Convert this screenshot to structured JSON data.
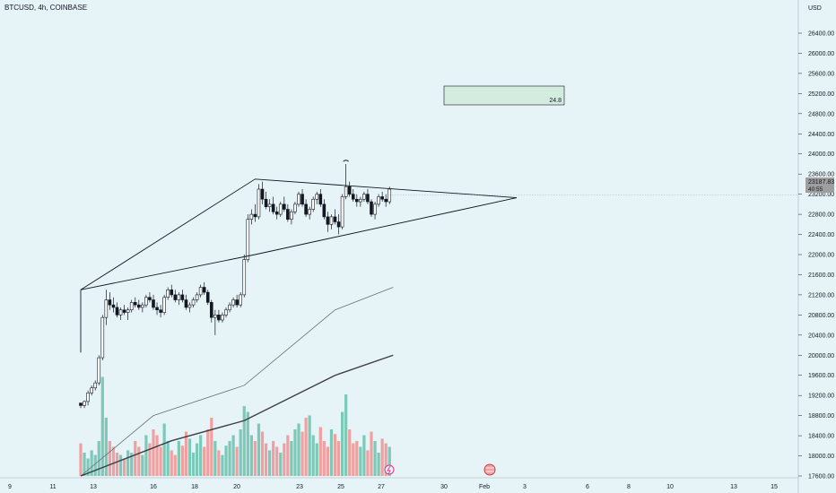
{
  "header": {
    "symbol_line": "BTCUSD, 4h, COINBASE"
  },
  "price_axis": {
    "currency": "USD",
    "current_price": "23187.83",
    "countdown": "40:55"
  },
  "annotation_box": {
    "text": "24.8",
    "color": "#d4ebe0"
  },
  "colors": {
    "background": "#e6f3f7",
    "candle_up": "#ffffff",
    "candle_down": "#131722",
    "volume_up": "#7cc9b8",
    "volume_down": "#f0a0a0",
    "trendline": "#131722",
    "ma_fast": "#6b6f76",
    "ma_slow": "#3c3f45"
  },
  "chart_data": {
    "type": "candlestick",
    "title": "BTCUSD, 4h, COINBASE",
    "ylabel": "USD",
    "ylim": [
      17600,
      26400
    ],
    "y_ticks": [
      17600,
      18000,
      18400,
      18800,
      19200,
      19600,
      20000,
      20400,
      20800,
      21200,
      21600,
      22000,
      22400,
      22800,
      23200,
      23600,
      24000,
      24400,
      24800,
      25200,
      25600,
      26000,
      26400
    ],
    "x_ticks": [
      "9",
      "11",
      "13",
      "16",
      "18",
      "20",
      "23",
      "25",
      "27",
      "30",
      "Feb",
      "3",
      "6",
      "8",
      "10",
      "13",
      "15"
    ],
    "last_price": 23187.83,
    "candle_ohlc": [
      [
        19050,
        19050,
        18950,
        19000
      ],
      [
        19000,
        19100,
        18950,
        19080
      ],
      [
        19080,
        19300,
        19000,
        19250
      ],
      [
        19250,
        19400,
        19200,
        19350
      ],
      [
        19350,
        19500,
        19300,
        19450
      ],
      [
        19450,
        20000,
        19400,
        19950
      ],
      [
        19950,
        20800,
        19900,
        20750
      ],
      [
        20750,
        21300,
        20600,
        21100
      ],
      [
        21100,
        21250,
        20900,
        21000
      ],
      [
        21000,
        21150,
        20850,
        20950
      ],
      [
        20950,
        21050,
        20750,
        20800
      ],
      [
        20800,
        20950,
        20700,
        20900
      ],
      [
        20900,
        21000,
        20800,
        20850
      ],
      [
        20850,
        20950,
        20700,
        20900
      ],
      [
        20900,
        21100,
        20850,
        21050
      ],
      [
        21050,
        21150,
        20950,
        21000
      ],
      [
        21000,
        21100,
        20900,
        20950
      ],
      [
        20950,
        21050,
        20850,
        21000
      ],
      [
        21000,
        21200,
        20950,
        21150
      ],
      [
        21150,
        21250,
        21050,
        21100
      ],
      [
        21100,
        21200,
        20900,
        20950
      ],
      [
        20950,
        21050,
        20800,
        20900
      ],
      [
        20900,
        21000,
        20750,
        20850
      ],
      [
        20850,
        21200,
        20800,
        21150
      ],
      [
        21150,
        21350,
        21100,
        21300
      ],
      [
        21300,
        21400,
        21150,
        21200
      ],
      [
        21200,
        21300,
        21050,
        21100
      ],
      [
        21100,
        21250,
        21000,
        21200
      ],
      [
        21200,
        21300,
        21050,
        21100
      ],
      [
        21100,
        21200,
        20900,
        20950
      ],
      [
        20950,
        21050,
        20850,
        21000
      ],
      [
        21000,
        21150,
        20950,
        21100
      ],
      [
        21100,
        21250,
        21050,
        21200
      ],
      [
        21200,
        21400,
        21150,
        21350
      ],
      [
        21350,
        21450,
        21200,
        21250
      ],
      [
        21250,
        21300,
        21000,
        21050
      ],
      [
        21050,
        21100,
        20650,
        20750
      ],
      [
        20750,
        20900,
        20400,
        20800
      ],
      [
        20800,
        20900,
        20650,
        20700
      ],
      [
        20700,
        20850,
        20650,
        20800
      ],
      [
        20800,
        20950,
        20750,
        20900
      ],
      [
        20900,
        21050,
        20850,
        21000
      ],
      [
        21000,
        21150,
        20950,
        21100
      ],
      [
        21100,
        21200,
        20950,
        21000
      ],
      [
        21000,
        21250,
        20950,
        21200
      ],
      [
        21200,
        22000,
        21150,
        21900
      ],
      [
        21900,
        22800,
        21850,
        22700
      ],
      [
        22700,
        22900,
        22600,
        22800
      ],
      [
        22800,
        23000,
        22650,
        22750
      ],
      [
        22750,
        23400,
        22700,
        23300
      ],
      [
        23300,
        23450,
        23000,
        23100
      ],
      [
        23100,
        23250,
        22900,
        22950
      ],
      [
        22950,
        23100,
        22850,
        23000
      ],
      [
        23000,
        23150,
        22800,
        22850
      ],
      [
        22850,
        22950,
        22700,
        22800
      ],
      [
        22800,
        23050,
        22750,
        23000
      ],
      [
        23000,
        23150,
        22850,
        22900
      ],
      [
        22900,
        23000,
        22650,
        22700
      ],
      [
        22700,
        22900,
        22600,
        22850
      ],
      [
        22850,
        23050,
        22800,
        23000
      ],
      [
        23000,
        23250,
        22950,
        23200
      ],
      [
        23200,
        23300,
        22950,
        23000
      ],
      [
        23000,
        23100,
        22750,
        22800
      ],
      [
        22800,
        22950,
        22700,
        22900
      ],
      [
        22900,
        23150,
        22850,
        23100
      ],
      [
        23100,
        23250,
        23000,
        23200
      ],
      [
        23200,
        23300,
        22950,
        23000
      ],
      [
        23000,
        23100,
        22700,
        22750
      ],
      [
        22750,
        22850,
        22450,
        22600
      ],
      [
        22600,
        22800,
        22500,
        22750
      ],
      [
        22750,
        22900,
        22600,
        22650
      ],
      [
        22650,
        22800,
        22400,
        22550
      ],
      [
        22550,
        23200,
        22500,
        23150
      ],
      [
        23150,
        23800,
        23100,
        23350
      ],
      [
        23350,
        23450,
        23150,
        23200
      ],
      [
        23200,
        23300,
        23050,
        23100
      ],
      [
        23100,
        23200,
        22950,
        23050
      ],
      [
        23050,
        23150,
        22950,
        23100
      ],
      [
        23100,
        23250,
        23050,
        23200
      ],
      [
        23200,
        23300,
        23000,
        23050
      ],
      [
        23050,
        23100,
        22750,
        22800
      ],
      [
        22800,
        23050,
        22700,
        23000
      ],
      [
        23000,
        23200,
        22950,
        23150
      ],
      [
        23150,
        23250,
        23050,
        23100
      ],
      [
        23100,
        23200,
        22950,
        23050
      ],
      [
        23050,
        23350,
        23000,
        23300
      ]
    ],
    "volume_relative": [
      0.28,
      0.2,
      0.15,
      0.22,
      0.18,
      0.3,
      0.85,
      0.5,
      0.3,
      0.25,
      0.2,
      0.18,
      0.15,
      0.22,
      0.2,
      0.3,
      0.25,
      0.18,
      0.35,
      0.28,
      0.4,
      0.35,
      0.25,
      0.45,
      0.3,
      0.22,
      0.18,
      0.3,
      0.26,
      0.38,
      0.32,
      0.2,
      0.28,
      0.35,
      0.25,
      0.4,
      0.5,
      0.3,
      0.22,
      0.18,
      0.26,
      0.3,
      0.35,
      0.25,
      0.4,
      0.6,
      0.55,
      0.35,
      0.3,
      0.45,
      0.38,
      0.28,
      0.22,
      0.3,
      0.25,
      0.2,
      0.28,
      0.35,
      0.3,
      0.4,
      0.45,
      0.38,
      0.5,
      0.52,
      0.35,
      0.28,
      0.42,
      0.3,
      0.25,
      0.4,
      0.36,
      0.3,
      0.55,
      0.7,
      0.4,
      0.28,
      0.3,
      0.25,
      0.35,
      0.22,
      0.38,
      0.3,
      0.2,
      0.32,
      0.28,
      0.25
    ],
    "triangle": {
      "upper": [
        [
          0,
          21300
        ],
        [
          48,
          23500
        ],
        [
          86,
          23380
        ]
      ],
      "lower": [
        [
          0,
          21300
        ],
        [
          48,
          22000
        ],
        [
          86,
          22400
        ]
      ],
      "apex": [
        120,
        23130
      ]
    },
    "ma_fast": [
      [
        0,
        17600
      ],
      [
        20,
        18800
      ],
      [
        45,
        19400
      ],
      [
        70,
        20900
      ],
      [
        86,
        21350
      ]
    ],
    "ma_slow": [
      [
        0,
        17600
      ],
      [
        25,
        18300
      ],
      [
        45,
        18700
      ],
      [
        70,
        19600
      ],
      [
        86,
        20000
      ]
    ]
  }
}
